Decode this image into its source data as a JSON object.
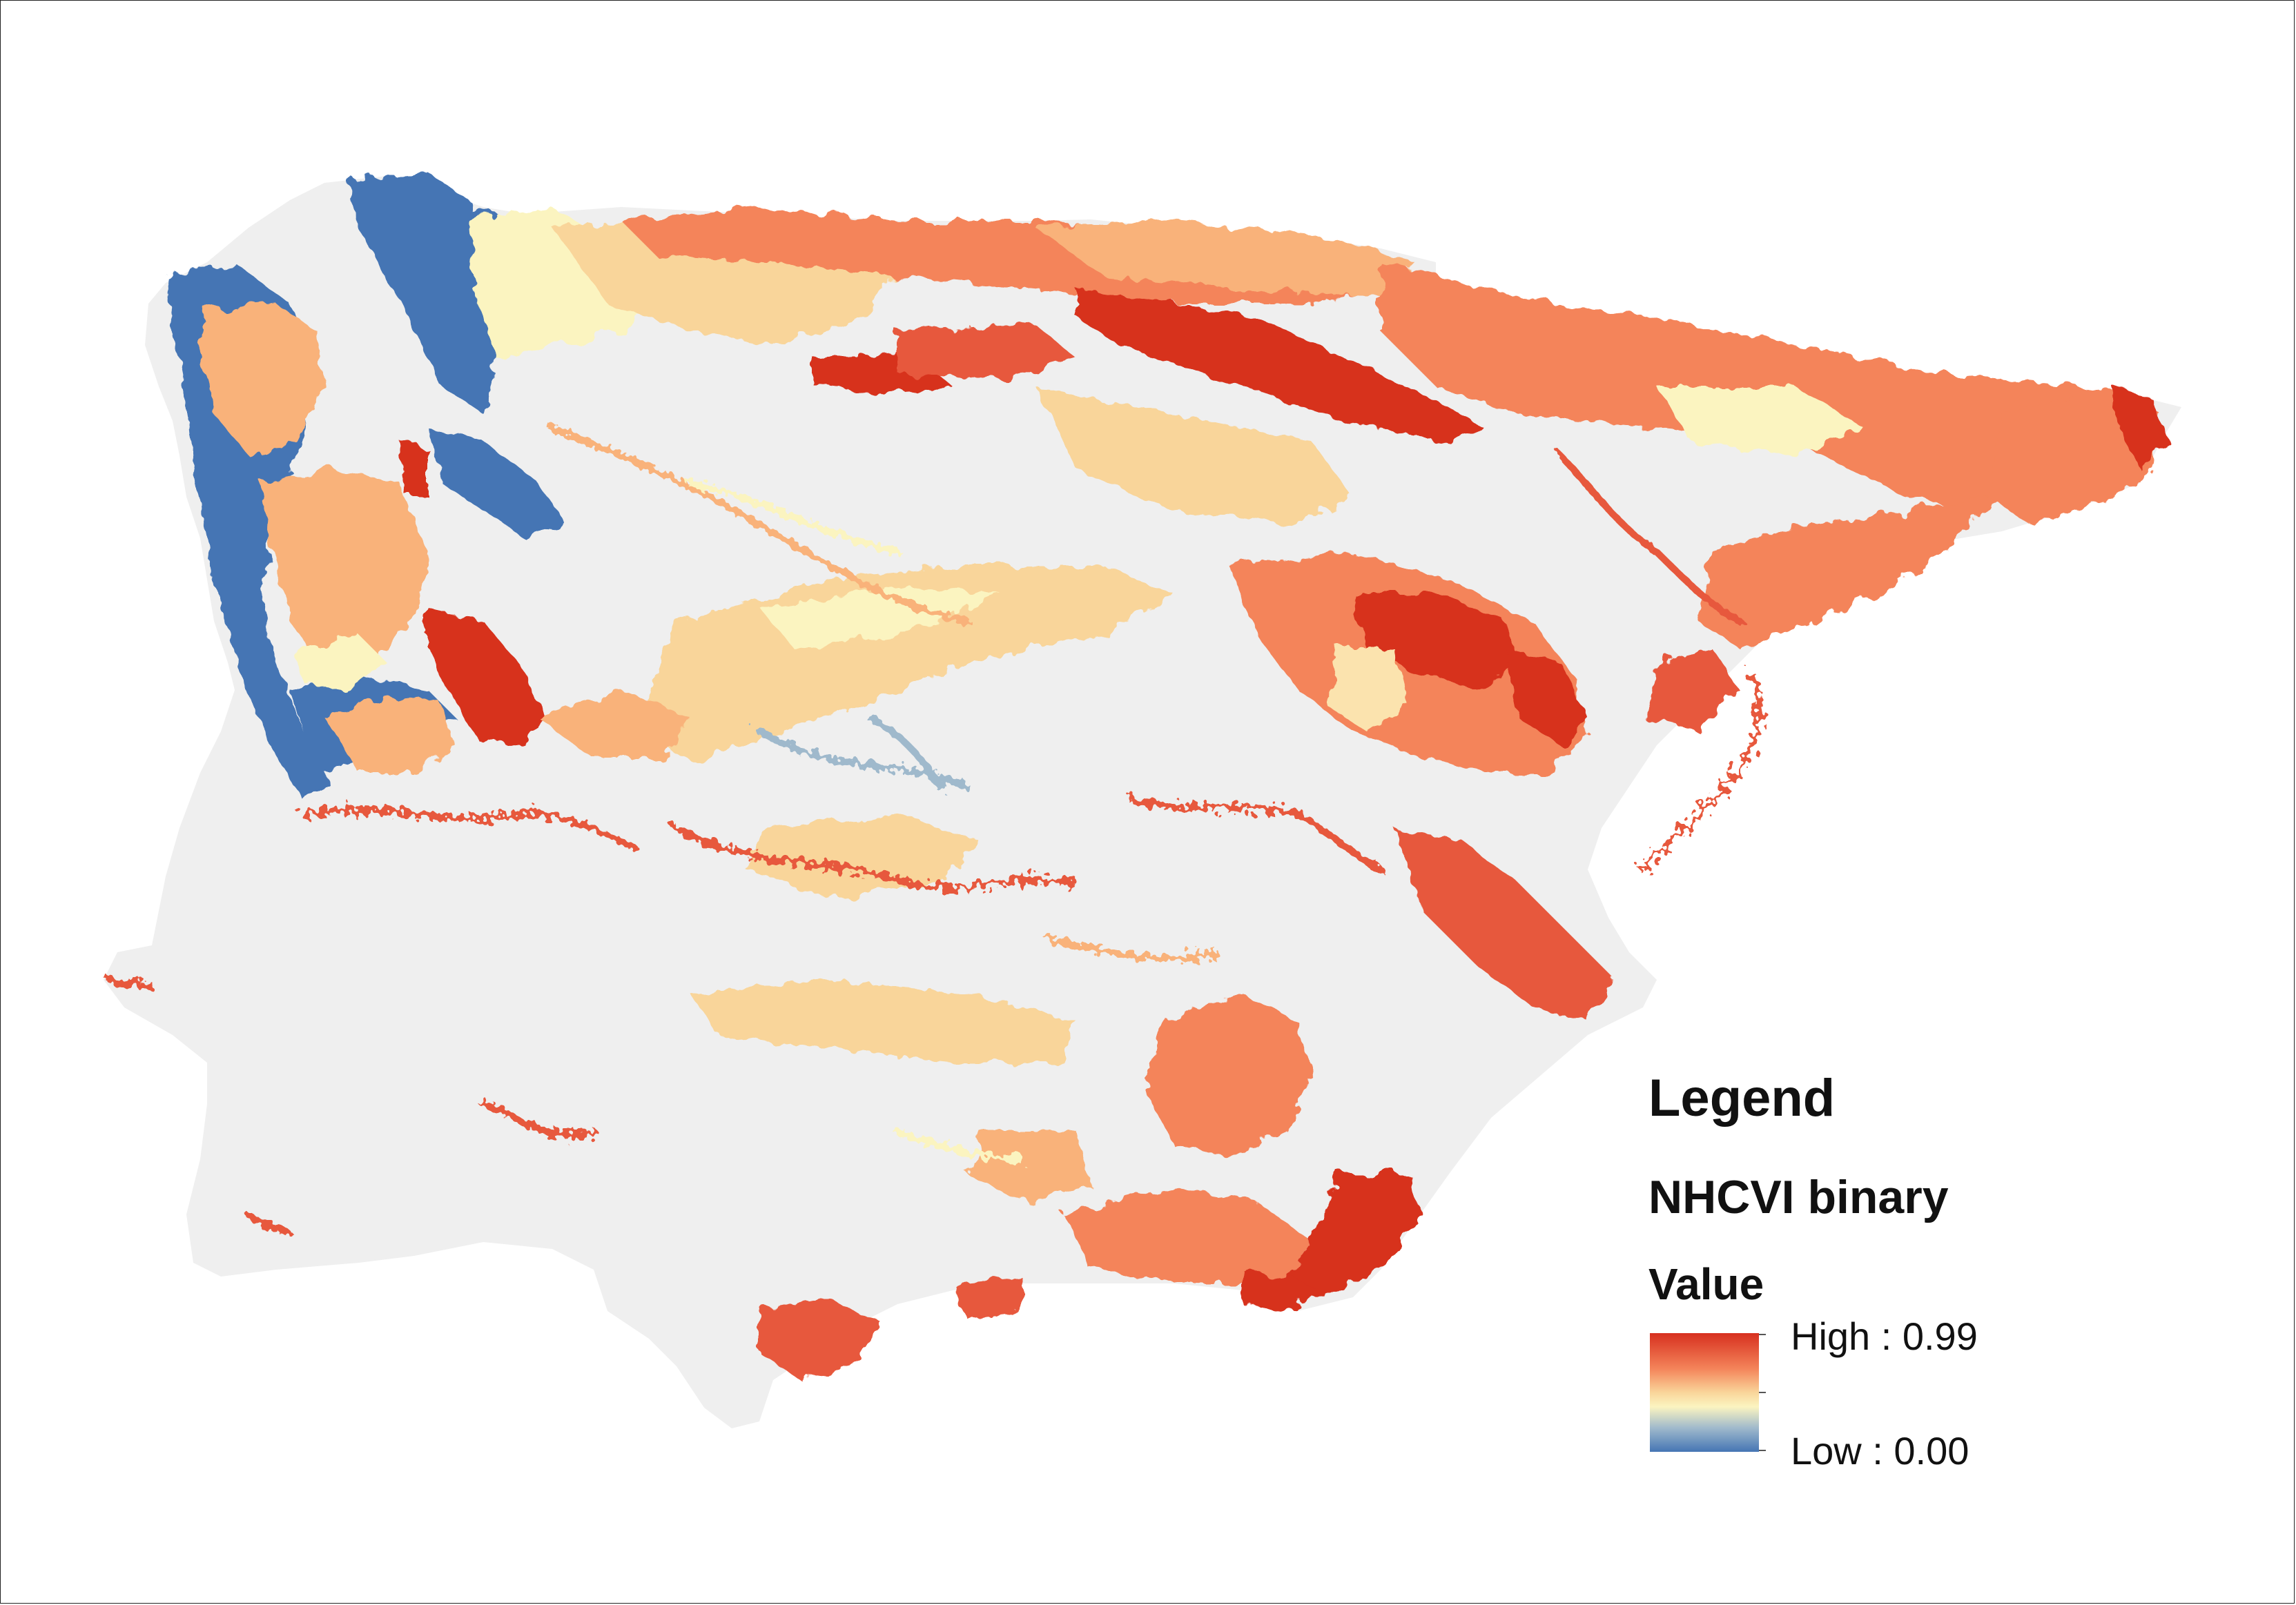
{
  "map": {
    "land_color": "#efefef",
    "background_color": "#ffffff",
    "ramp_colors": [
      "#d7301f",
      "#f4845a",
      "#f9d59a",
      "#fbf4c0",
      "#9fb9cc",
      "#4575b4"
    ]
  },
  "legend": {
    "title": "Legend",
    "layer_name": "NHCVI binary",
    "field_name": "Value",
    "high_label": "High : 0.99",
    "low_label": "Low : 0.00",
    "high_value": 0.99,
    "low_value": 0.0
  }
}
